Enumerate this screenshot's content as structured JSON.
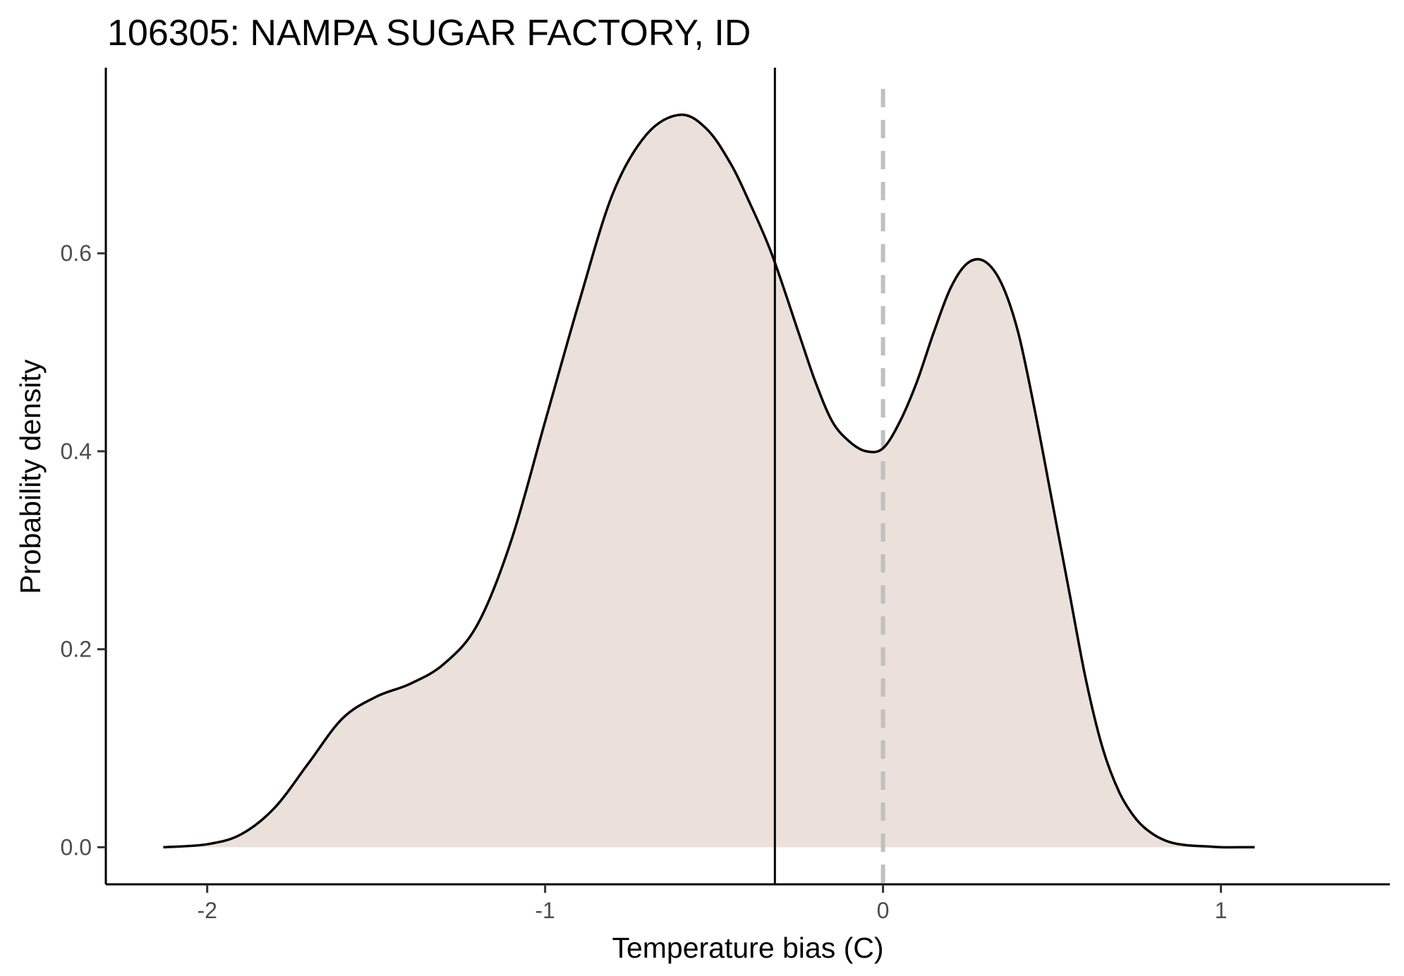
{
  "chart_data": {
    "type": "area",
    "title": "106305: NAMPA SUGAR FACTORY, ID",
    "xlabel": "Temperature bias (C)",
    "ylabel": "Probability density",
    "xlim": [
      -2.3,
      1.5
    ],
    "ylim": [
      -0.0375,
      0.7875
    ],
    "x_ticks": [
      -2,
      -1,
      0,
      1
    ],
    "x_tick_labels": [
      "-2",
      "-1",
      "0",
      "1"
    ],
    "y_ticks": [
      0.0,
      0.2,
      0.4,
      0.6
    ],
    "y_tick_labels": [
      "0.0",
      "0.2",
      "0.4",
      "0.6"
    ],
    "grid": false,
    "legend": "none",
    "series": [
      {
        "x": [
          -2.13,
          -2.0,
          -1.9,
          -1.8,
          -1.7,
          -1.6,
          -1.5,
          -1.4,
          -1.3,
          -1.2,
          -1.1,
          -1.0,
          -0.9,
          -0.8,
          -0.7,
          -0.6,
          -0.52,
          -0.45,
          -0.4,
          -0.33,
          -0.25,
          -0.2,
          -0.15,
          -0.1,
          -0.05,
          0.0,
          0.05,
          0.1,
          0.15,
          0.2,
          0.25,
          0.3,
          0.35,
          0.4,
          0.45,
          0.5,
          0.55,
          0.6,
          0.65,
          0.7,
          0.75,
          0.8,
          0.85,
          0.9,
          0.95,
          1.0,
          1.05,
          1.1
        ],
        "y": [
          0.0,
          0.003,
          0.013,
          0.04,
          0.085,
          0.13,
          0.152,
          0.165,
          0.185,
          0.225,
          0.31,
          0.43,
          0.55,
          0.66,
          0.72,
          0.74,
          0.725,
          0.69,
          0.655,
          0.6,
          0.52,
          0.47,
          0.43,
          0.41,
          0.4,
          0.403,
          0.43,
          0.47,
          0.52,
          0.565,
          0.59,
          0.592,
          0.57,
          0.52,
          0.44,
          0.35,
          0.26,
          0.17,
          0.1,
          0.055,
          0.028,
          0.013,
          0.005,
          0.002,
          0.001,
          0.0,
          0.0,
          0.0
        ]
      }
    ],
    "reference_lines": [
      {
        "x": -0.32,
        "style": "solid",
        "color": "#000000"
      },
      {
        "x": 0.0,
        "style": "dashed",
        "color": "#c0c0c0"
      }
    ],
    "fill_color": "#ebe0da",
    "line_color": "#000000"
  }
}
